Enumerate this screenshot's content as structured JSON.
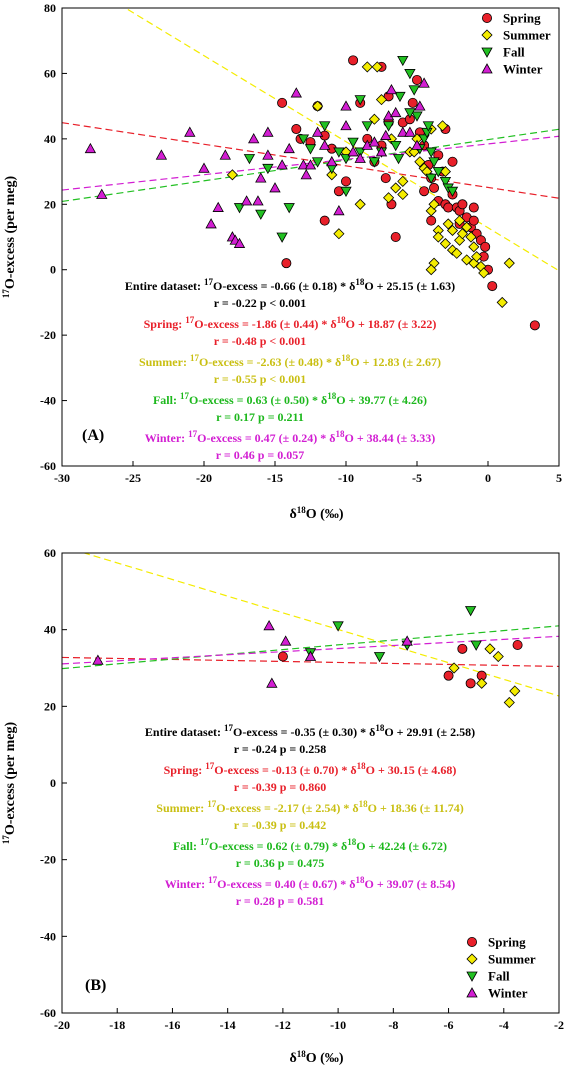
{
  "chart_data": [
    {
      "type": "scatter",
      "panel_label": "(A)",
      "xlabel": "δ18O (‰)",
      "ylabel": "17O-excess (per meg)",
      "xlim": [
        -30,
        5
      ],
      "ylim": [
        -60,
        80
      ],
      "xticks": [
        "-30",
        "-25",
        "-20",
        "-15",
        "-10",
        "-5",
        "0",
        "5"
      ],
      "yticks": [
        "-60",
        "-40",
        "-20",
        "0",
        "20",
        "40",
        "60",
        "80"
      ],
      "legend_position": "top-right",
      "series": [
        {
          "name": "Spring",
          "marker": "circle",
          "color": "#e8202a",
          "points": [
            [
              -14.5,
              51
            ],
            [
              -13.5,
              43
            ],
            [
              -13.2,
              40
            ],
            [
              -12.5,
              39
            ],
            [
              -12,
              50
            ],
            [
              -11.5,
              41
            ],
            [
              -11,
              37
            ],
            [
              -11.5,
              15
            ],
            [
              -10.5,
              24
            ],
            [
              -10,
              27
            ],
            [
              -9.5,
              64
            ],
            [
              -9,
              51
            ],
            [
              -8.5,
              40
            ],
            [
              -8,
              33
            ],
            [
              -7.5,
              38
            ],
            [
              -7.5,
              62
            ],
            [
              -7.2,
              28
            ],
            [
              -7,
              45
            ],
            [
              -7,
              53
            ],
            [
              -6.8,
              20
            ],
            [
              -6.5,
              10
            ],
            [
              -6,
              45
            ],
            [
              -5.5,
              46
            ],
            [
              -5.3,
              51
            ],
            [
              -5,
              58
            ],
            [
              -4.8,
              42
            ],
            [
              -4.5,
              38
            ],
            [
              -4.2,
              32
            ],
            [
              -4,
              28
            ],
            [
              -3.8,
              25
            ],
            [
              -3.5,
              21
            ],
            [
              -3.5,
              35
            ],
            [
              -3.2,
              30
            ],
            [
              -3,
              20
            ],
            [
              -3,
              43
            ],
            [
              -2.8,
              19
            ],
            [
              -2.5,
              33
            ],
            [
              -2.5,
              23
            ],
            [
              -2.2,
              19
            ],
            [
              -2,
              18
            ],
            [
              -2,
              14
            ],
            [
              -1.8,
              20
            ],
            [
              -1.5,
              16
            ],
            [
              -1.2,
              13
            ],
            [
              -1,
              19
            ],
            [
              -1,
              15
            ],
            [
              -0.8,
              11
            ],
            [
              -0.5,
              9
            ],
            [
              -0.3,
              4
            ],
            [
              -0.2,
              7
            ],
            [
              0,
              0
            ],
            [
              0.3,
              -5
            ],
            [
              -4,
              15
            ],
            [
              -4.5,
              24
            ],
            [
              -14.2,
              2
            ],
            [
              3.3,
              -17
            ]
          ]
        },
        {
          "name": "Summer",
          "marker": "diamond",
          "color": "#f4ec00",
          "points": [
            [
              -12,
              50
            ],
            [
              -11,
              29
            ],
            [
              -10.5,
              11
            ],
            [
              -10,
              36
            ],
            [
              -9,
              20
            ],
            [
              -8.5,
              62
            ],
            [
              -8,
              46
            ],
            [
              -7.8,
              62
            ],
            [
              -7.5,
              52
            ],
            [
              -7,
              22
            ],
            [
              -6.5,
              25
            ],
            [
              -6,
              27
            ],
            [
              -6,
              23
            ],
            [
              -5.5,
              36
            ],
            [
              -5,
              40
            ],
            [
              -4.8,
              33
            ],
            [
              -4.5,
              31
            ],
            [
              -4.3,
              30
            ],
            [
              -4,
              43
            ],
            [
              -4,
              18
            ],
            [
              -3.8,
              20
            ],
            [
              -3.8,
              2
            ],
            [
              -3.5,
              12
            ],
            [
              -3.5,
              10
            ],
            [
              -3.2,
              44
            ],
            [
              -3,
              8
            ],
            [
              -3,
              30
            ],
            [
              -2.8,
              14
            ],
            [
              -2.5,
              12
            ],
            [
              -2.5,
              6
            ],
            [
              -2.2,
              5
            ],
            [
              -2,
              15
            ],
            [
              -2,
              9
            ],
            [
              -1.8,
              11
            ],
            [
              -1.5,
              13
            ],
            [
              -1.5,
              3
            ],
            [
              -1.2,
              10
            ],
            [
              -1,
              7
            ],
            [
              -1,
              2
            ],
            [
              -0.8,
              4
            ],
            [
              -0.5,
              1
            ],
            [
              -0.3,
              -1
            ],
            [
              1.5,
              2
            ],
            [
              1,
              -10
            ],
            [
              -4,
              0
            ],
            [
              -18,
              29
            ],
            [
              -6.8,
              40
            ],
            [
              -5.2,
              36
            ]
          ]
        },
        {
          "name": "Fall",
          "marker": "triangle-down",
          "color": "#22c022",
          "points": [
            [
              -17.5,
              19
            ],
            [
              -16.8,
              34
            ],
            [
              -16,
              17
            ],
            [
              -15.5,
              31
            ],
            [
              -14.5,
              10
            ],
            [
              -14,
              19
            ],
            [
              -13,
              40
            ],
            [
              -12.5,
              37
            ],
            [
              -12,
              33
            ],
            [
              -11.5,
              44
            ],
            [
              -11,
              31
            ],
            [
              -10.5,
              36
            ],
            [
              -10,
              34
            ],
            [
              -9.5,
              39
            ],
            [
              -9,
              36
            ],
            [
              -8.5,
              44
            ],
            [
              -8,
              33
            ],
            [
              -7.5,
              36
            ],
            [
              -7,
              44
            ],
            [
              -6.5,
              38
            ],
            [
              -6.2,
              53
            ],
            [
              -6,
              64
            ],
            [
              -5.5,
              60
            ],
            [
              -5.2,
              55
            ],
            [
              -5,
              47
            ],
            [
              -4.8,
              37
            ],
            [
              -4.5,
              40
            ],
            [
              -4.3,
              42
            ],
            [
              -4,
              36
            ],
            [
              -4,
              28
            ],
            [
              -3.8,
              33
            ],
            [
              -3.5,
              30
            ],
            [
              -3,
              27
            ],
            [
              -2.8,
              25
            ],
            [
              -2.5,
              24
            ],
            [
              -5.5,
              48
            ],
            [
              -4.2,
              44
            ],
            [
              -9,
              52
            ],
            [
              -10,
              24
            ],
            [
              -6.3,
              34
            ]
          ]
        },
        {
          "name": "Winter",
          "marker": "triangle-up",
          "color": "#d21ed2",
          "points": [
            [
              -28,
              37
            ],
            [
              -27.2,
              23
            ],
            [
              -23,
              35
            ],
            [
              -21,
              42
            ],
            [
              -20,
              31
            ],
            [
              -19.5,
              14
            ],
            [
              -19,
              19
            ],
            [
              -18.5,
              35
            ],
            [
              -18,
              10
            ],
            [
              -17.8,
              9
            ],
            [
              -17.5,
              8
            ],
            [
              -17,
              21
            ],
            [
              -16.5,
              40
            ],
            [
              -16,
              28
            ],
            [
              -15.5,
              35
            ],
            [
              -15.5,
              42
            ],
            [
              -15,
              25
            ],
            [
              -14.5,
              32
            ],
            [
              -14,
              37
            ],
            [
              -13.5,
              54
            ],
            [
              -13,
              32
            ],
            [
              -12.5,
              32
            ],
            [
              -12,
              42
            ],
            [
              -11.5,
              38
            ],
            [
              -11,
              33
            ],
            [
              -10.5,
              18
            ],
            [
              -10,
              44
            ],
            [
              -10,
              50
            ],
            [
              -9.5,
              36
            ],
            [
              -9,
              34
            ],
            [
              -8.5,
              38
            ],
            [
              -8,
              39
            ],
            [
              -7.5,
              36
            ],
            [
              -7.2,
              41
            ],
            [
              -7,
              47
            ],
            [
              -6.8,
              55
            ],
            [
              -6.5,
              48
            ],
            [
              -6,
              42
            ],
            [
              -5.5,
              42
            ],
            [
              -5,
              38
            ],
            [
              -4.8,
              50
            ],
            [
              -4.5,
              57
            ],
            [
              -12.8,
              29
            ],
            [
              -16.2,
              21
            ]
          ]
        }
      ],
      "fit_lines": [
        {
          "series": "Entire dataset",
          "slope": -0.66,
          "intercept": 25.15,
          "color": "#e8202a"
        },
        {
          "series": "Summer",
          "slope": -2.63,
          "intercept": 12.83,
          "color": "#f4ec00"
        },
        {
          "series": "Fall",
          "slope": 0.63,
          "intercept": 39.77,
          "color": "#22c022"
        },
        {
          "series": "Winter",
          "slope": 0.47,
          "intercept": 38.44,
          "color": "#d21ed2"
        }
      ],
      "equations": [
        {
          "label": "Entire dataset:",
          "eq": "17O-excess = -0.66 (± 0.18) * δ18O + 25.15 (± 1.63)",
          "stats": "r = -0.22  p < 0.001",
          "color": "#000000"
        },
        {
          "label": "Spring:",
          "eq": "17O-excess = -1.86 (± 0.44) * δ18O + 18.87 (± 3.22)",
          "stats": "r = -0.48  p < 0.001",
          "color": "#e8202a"
        },
        {
          "label": "Summer:",
          "eq": "17O-excess = -2.63 (± 0.48) * δ18O + 12.83 (± 2.67)",
          "stats": "r = -0.55  p < 0.001",
          "color": "#c9bf12"
        },
        {
          "label": "Fall:",
          "eq": "17O-excess = 0.63 (± 0.50) * δ18O + 39.77 (± 4.26)",
          "stats": "r = 0.17  p = 0.211",
          "color": "#1db81d"
        },
        {
          "label": "Winter:",
          "eq": "17O-excess = 0.47 (± 0.24) * δ18O + 38.44 (± 3.33)",
          "stats": "r = 0.46  p = 0.057",
          "color": "#d21ed2"
        }
      ]
    },
    {
      "type": "scatter",
      "panel_label": "(B)",
      "xlabel": "δ18O (‰)",
      "ylabel": "17O-excess (per meg)",
      "xlim": [
        -20,
        -2
      ],
      "ylim": [
        -60,
        60
      ],
      "xticks": [
        "-20",
        "-18",
        "-16",
        "-14",
        "-12",
        "-10",
        "-8",
        "-6",
        "-4",
        "-2"
      ],
      "yticks": [
        "-60",
        "-40",
        "-20",
        "0",
        "20",
        "40",
        "60"
      ],
      "legend_position": "bottom-right",
      "series": [
        {
          "name": "Spring",
          "marker": "circle",
          "color": "#e8202a",
          "points": [
            [
              -12,
              33
            ],
            [
              -6,
              28
            ],
            [
              -5.5,
              35
            ],
            [
              -5.2,
              26
            ],
            [
              -4.8,
              28
            ],
            [
              -3.5,
              36
            ]
          ]
        },
        {
          "name": "Summer",
          "marker": "diamond",
          "color": "#f4ec00",
          "points": [
            [
              -5.8,
              30
            ],
            [
              -4.8,
              26
            ],
            [
              -4.5,
              35
            ],
            [
              -4.2,
              33
            ],
            [
              -3.8,
              21
            ],
            [
              -3.6,
              24
            ]
          ]
        },
        {
          "name": "Fall",
          "marker": "triangle-down",
          "color": "#22c022",
          "points": [
            [
              -11,
              34
            ],
            [
              -10,
              41
            ],
            [
              -8.5,
              33
            ],
            [
              -7.5,
              36
            ],
            [
              -5.2,
              45
            ],
            [
              -5,
              36
            ]
          ]
        },
        {
          "name": "Winter",
          "marker": "triangle-up",
          "color": "#d21ed2",
          "points": [
            [
              -18.7,
              32
            ],
            [
              -12.5,
              41
            ],
            [
              -12.4,
              26
            ],
            [
              -11.9,
              37
            ],
            [
              -11,
              33
            ],
            [
              -7.5,
              37
            ]
          ]
        }
      ],
      "fit_lines": [
        {
          "series": "Spring",
          "slope": -0.13,
          "intercept": 30.15,
          "color": "#e8202a"
        },
        {
          "series": "Summer",
          "slope": -2.17,
          "intercept": 18.36,
          "color": "#f4ec00"
        },
        {
          "series": "Fall",
          "slope": 0.62,
          "intercept": 42.24,
          "color": "#22c022"
        },
        {
          "series": "Winter",
          "slope": 0.4,
          "intercept": 39.07,
          "color": "#d21ed2"
        }
      ],
      "equations": [
        {
          "label": "Entire dataset:",
          "eq": "17O-excess = -0.35 (± 0.30) * δ18O + 29.91 (± 2.58)",
          "stats": "r = -0.24  p = 0.258",
          "color": "#000000"
        },
        {
          "label": "Spring:",
          "eq": "17O-excess = -0.13 (± 0.70) * δ18O + 30.15 (± 4.68)",
          "stats": "r = -0.39  p = 0.860",
          "color": "#e8202a"
        },
        {
          "label": "Summer:",
          "eq": "17O-excess = -2.17 (± 2.54) * δ18O + 18.36 (± 11.74)",
          "stats": "r = -0.39  p = 0.442",
          "color": "#c9bf12"
        },
        {
          "label": "Fall:",
          "eq": "17O-excess = 0.62 (± 0.79) * δ18O + 42.24 (± 6.72)",
          "stats": "r = 0.36  p = 0.475",
          "color": "#1db81d"
        },
        {
          "label": "Winter:",
          "eq": "17O-excess = 0.40 (± 0.67) * δ18O + 39.07 (± 8.54)",
          "stats": "r = 0.28  p = 0.581",
          "color": "#d21ed2"
        }
      ]
    }
  ]
}
